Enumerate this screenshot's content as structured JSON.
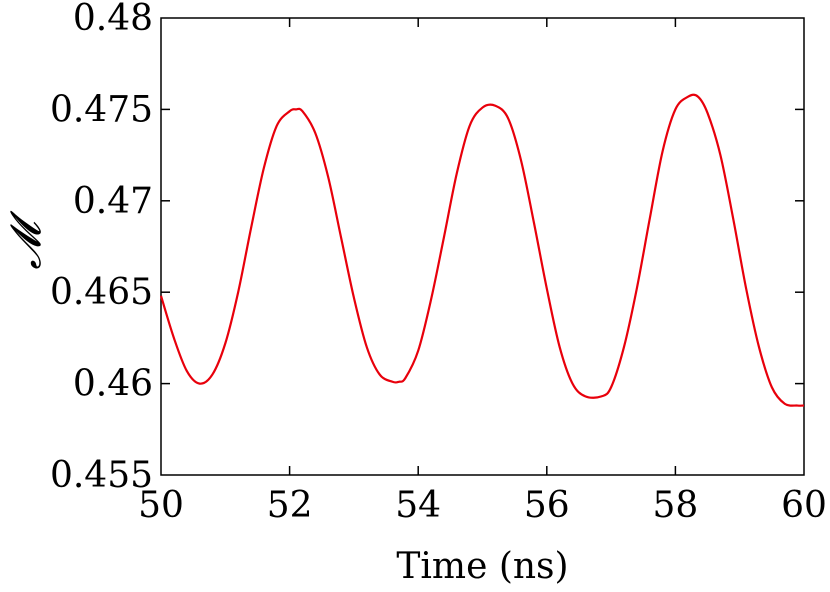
{
  "chart_data": {
    "type": "line",
    "title": "",
    "xlabel": "Time (ns)",
    "ylabel": "𝓜",
    "xlim": [
      50,
      60
    ],
    "ylim": [
      0.455,
      0.48
    ],
    "x_ticks": [
      50,
      52,
      54,
      56,
      58,
      60
    ],
    "x_tick_labels": [
      "50",
      "52",
      "54",
      "56",
      "58",
      "60"
    ],
    "y_ticks": [
      0.455,
      0.46,
      0.465,
      0.47,
      0.475,
      0.48
    ],
    "y_tick_labels": [
      "0.455",
      "0.46",
      "0.465",
      "0.47",
      "0.475",
      "0.48"
    ],
    "grid": false,
    "legend": "none",
    "series": [
      {
        "color": "#e8000b",
        "x": [
          50.0,
          50.2,
          50.4,
          50.6,
          50.8,
          51.0,
          51.2,
          51.4,
          51.6,
          51.8,
          52.0,
          52.1,
          52.2,
          52.4,
          52.6,
          52.8,
          53.0,
          53.2,
          53.4,
          53.6,
          53.7,
          53.8,
          54.0,
          54.2,
          54.4,
          54.6,
          54.8,
          55.0,
          55.2,
          55.4,
          55.6,
          55.8,
          56.0,
          56.2,
          56.4,
          56.6,
          56.85,
          57.0,
          57.2,
          57.4,
          57.6,
          57.8,
          58.0,
          58.2,
          58.35,
          58.5,
          58.7,
          58.9,
          59.1,
          59.3,
          59.5,
          59.7,
          59.9,
          60.0
        ],
        "y": [
          0.4648,
          0.4625,
          0.4607,
          0.46,
          0.4605,
          0.4622,
          0.465,
          0.4685,
          0.4718,
          0.4741,
          0.4749,
          0.475,
          0.4749,
          0.4737,
          0.4713,
          0.468,
          0.4647,
          0.462,
          0.4605,
          0.4601,
          0.4601,
          0.4603,
          0.4618,
          0.4646,
          0.468,
          0.4715,
          0.4741,
          0.4751,
          0.4752,
          0.4745,
          0.4722,
          0.4688,
          0.4652,
          0.462,
          0.46,
          0.4593,
          0.4593,
          0.4598,
          0.462,
          0.4652,
          0.469,
          0.4727,
          0.475,
          0.4757,
          0.4757,
          0.4748,
          0.4725,
          0.469,
          0.4652,
          0.462,
          0.4598,
          0.4589,
          0.4588,
          0.4588
        ]
      }
    ]
  }
}
